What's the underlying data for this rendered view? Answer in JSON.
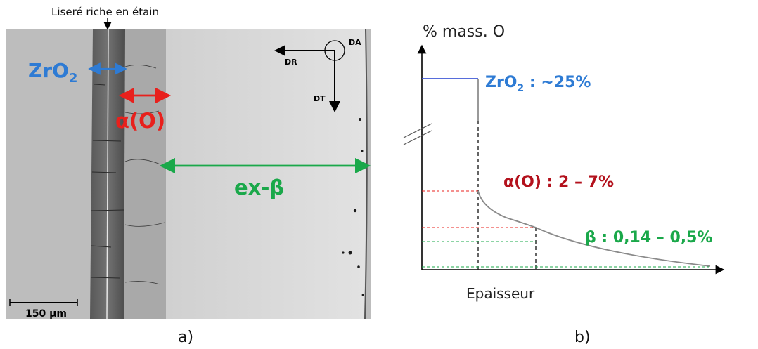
{
  "micrograph": {
    "top_label": "Liseré riche en étain",
    "zro2_label": "ZrO",
    "zro2_sub": "2",
    "alpha_label": "α(O)",
    "exbeta_label": "ex-β",
    "scale_bar_label": "150 µm",
    "axis_da": "DA",
    "axis_dr": "DR",
    "axis_dt": "DT",
    "panel_label": "a)"
  },
  "profile": {
    "ylabel": "% mass. O",
    "xlabel": "Epaisseur",
    "zro2_text": "ZrO",
    "zro2_sub": "2",
    "zro2_value": " : ~25%",
    "alpha_text": "α(O) : 2 – 7%",
    "beta_text": "β : 0,14 – 0,5%",
    "panel_label": "b)"
  },
  "colors": {
    "zro2": "#2e7bd4",
    "alpha": "#e8201c",
    "alpha_dark": "#b3111c",
    "beta": "#1aa84a",
    "profile_curve": "#7f7f7f"
  }
}
